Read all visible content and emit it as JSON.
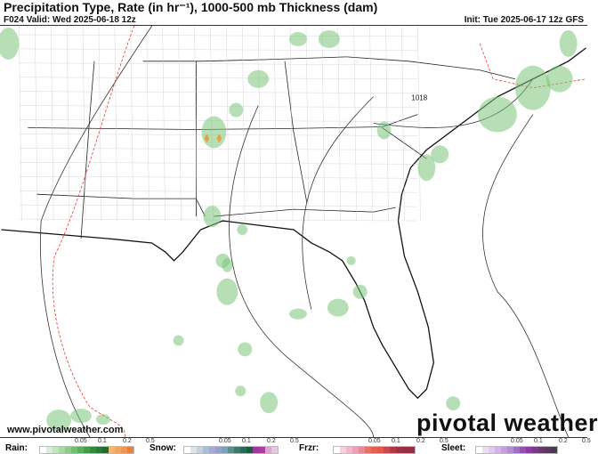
{
  "header": {
    "title": "Precipitation Type, Rate (in hr⁻¹), 1000-500 mb Thickness (dam)",
    "valid": "F024 Valid: Wed 2025-06-18 12z",
    "init": "Init: Tue 2025-06-17 12z GFS"
  },
  "map": {
    "pressure_label": "1018",
    "watermark_url": "www.pivotalweather.com",
    "logo_text": "pivotal weather"
  },
  "legend": [
    {
      "label": "Rain:",
      "ticks": [
        "0.05",
        "0.1",
        "0.2",
        "0.5"
      ],
      "colors": [
        "#ffffff",
        "#d8eed6",
        "#c2e4bf",
        "#a8d8a4",
        "#8ecb8a",
        "#74bd72",
        "#5aae5c",
        "#449c4a",
        "#338a3c",
        "#2a7a36",
        "#1f6a30",
        "#f3b86e",
        "#f0a860",
        "#ec9650",
        "#e88046"
      ]
    },
    {
      "label": "Snow:",
      "ticks": [
        "0.05",
        "0.1",
        "0.2",
        "0.5"
      ],
      "colors": [
        "#ffffff",
        "#dfe4ea",
        "#c4d2e0",
        "#a8bfd8",
        "#a6a9d4",
        "#9aa0cc",
        "#7fa0b8",
        "#5a8f8a",
        "#3a7a6a",
        "#2a6a56",
        "#1f5a46",
        "#9a3aa0",
        "#b23aa6",
        "#d8a8cc",
        "#e8c8e0"
      ]
    },
    {
      "label": "Frzr:",
      "ticks": [
        "0.05",
        "0.1",
        "0.2",
        "0.5"
      ],
      "colors": [
        "#ffffff",
        "#f6d0dc",
        "#f0b8c8",
        "#eca0b4",
        "#e8889c",
        "#e87066",
        "#e86050",
        "#e45a4a",
        "#c84a50",
        "#b03a48",
        "#a03246",
        "#9a2e44",
        "#943044"
      ]
    },
    {
      "label": "Sleet:",
      "ticks": [
        "0.05",
        "0.1",
        "0.2",
        "0.5"
      ],
      "colors": [
        "#ffffff",
        "#eedcf0",
        "#e2c8ea",
        "#d4b4e2",
        "#c4a0d8",
        "#b48cd0",
        "#a070c4",
        "#9650b0",
        "#8a3aa0",
        "#7a3a8a",
        "#6a3a6a",
        "#5a3a5a",
        "#4a3a4a"
      ]
    }
  ]
}
